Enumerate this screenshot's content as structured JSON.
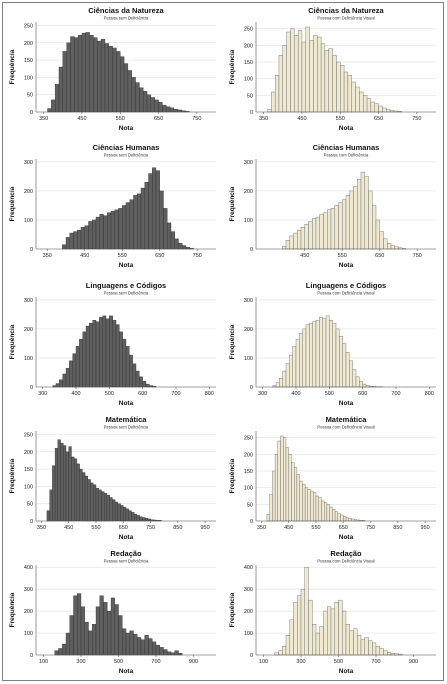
{
  "colors": {
    "dark_bar": "#5f5f5f",
    "dark_stroke": "#2b2b2b",
    "light_bar": "#efe9d2",
    "light_stroke": "#555555"
  },
  "chart_data": [
    {
      "type": "bar",
      "title": "Ciências da Natureza",
      "subtitle": "Pessoa sem Deficiência",
      "xlabel": "Nota",
      "ylabel": "Frequência",
      "xlim": [
        330,
        800
      ],
      "ylim": [
        0,
        260
      ],
      "xticks": [
        "350",
        "450",
        "550",
        "650",
        "750"
      ],
      "yticks": [
        "0",
        "50",
        "100",
        "150",
        "200",
        "250"
      ],
      "bin_start": 360,
      "bin_width": 10,
      "values": [
        10,
        35,
        80,
        130,
        175,
        200,
        218,
        215,
        222,
        228,
        230,
        222,
        215,
        205,
        210,
        198,
        190,
        185,
        175,
        160,
        140,
        120,
        100,
        85,
        70,
        60,
        50,
        42,
        35,
        28,
        20,
        15,
        12,
        8,
        6,
        4,
        2
      ]
    },
    {
      "type": "bar",
      "title": "Ciências da Natureza",
      "subtitle": "Pessoa com Deficiência Visual",
      "xlabel": "Nota",
      "ylabel": "Frequência",
      "xlim": [
        330,
        800
      ],
      "ylim": [
        0,
        270
      ],
      "xticks": [
        "350",
        "450",
        "550",
        "650",
        "750"
      ],
      "yticks": [
        "0",
        "50",
        "100",
        "150",
        "200",
        "250"
      ],
      "bin_start": 360,
      "bin_width": 10,
      "values": [
        8,
        60,
        110,
        170,
        200,
        240,
        250,
        230,
        245,
        210,
        255,
        215,
        230,
        225,
        205,
        185,
        190,
        170,
        150,
        140,
        120,
        110,
        90,
        75,
        60,
        50,
        40,
        30,
        25,
        18,
        12,
        8,
        5,
        3,
        2
      ]
    },
    {
      "type": "bar",
      "title": "Ciências Humanas",
      "subtitle": "Pessoa sem Deficiência",
      "xlabel": "Nota",
      "ylabel": "Frequência",
      "xlim": [
        320,
        800
      ],
      "ylim": [
        0,
        310
      ],
      "xticks": [
        "350",
        "450",
        "550",
        "650",
        "750"
      ],
      "yticks": [
        "0",
        "100",
        "200",
        "300"
      ],
      "bin_start": 390,
      "bin_width": 10,
      "values": [
        15,
        40,
        55,
        60,
        65,
        75,
        80,
        95,
        100,
        110,
        120,
        115,
        125,
        130,
        135,
        140,
        150,
        160,
        170,
        185,
        190,
        210,
        230,
        260,
        280,
        270,
        200,
        140,
        90,
        60,
        35,
        20,
        12,
        6,
        3
      ]
    },
    {
      "type": "bar",
      "title": "Ciências Humanas",
      "subtitle": "Pessoa com Deficiência",
      "xlabel": "Nota",
      "ylabel": "Frequência",
      "xlim": [
        320,
        800
      ],
      "ylim": [
        0,
        310
      ],
      "xticks": [
        "450",
        "550",
        "650",
        "750"
      ],
      "yticks": [
        "0",
        "100",
        "200",
        "300"
      ],
      "bin_start": 390,
      "bin_width": 10,
      "values": [
        10,
        30,
        45,
        55,
        65,
        75,
        85,
        95,
        105,
        110,
        120,
        125,
        135,
        140,
        150,
        160,
        170,
        185,
        200,
        215,
        240,
        265,
        250,
        200,
        150,
        100,
        60,
        35,
        20,
        12,
        8,
        4,
        2
      ]
    },
    {
      "type": "bar",
      "title": "Linguagens e Códigos",
      "subtitle": "Pessoa sem Deficiência",
      "xlabel": "Nota",
      "ylabel": "Frequência",
      "xlim": [
        280,
        820
      ],
      "ylim": [
        0,
        310
      ],
      "xticks": [
        "300",
        "400",
        "500",
        "600",
        "700",
        "800"
      ],
      "yticks": [
        "0",
        "100",
        "200",
        "300"
      ],
      "bin_start": 330,
      "bin_width": 10,
      "values": [
        5,
        12,
        25,
        45,
        65,
        90,
        115,
        140,
        165,
        190,
        210,
        220,
        230,
        225,
        240,
        245,
        235,
        245,
        230,
        215,
        190,
        165,
        140,
        110,
        80,
        55,
        35,
        20,
        10,
        5,
        3
      ]
    },
    {
      "type": "bar",
      "title": "Linguagens e Códigos",
      "subtitle": "Pessoa com Deficiência Visual",
      "xlabel": "Nota",
      "ylabel": "Frequência",
      "xlim": [
        280,
        820
      ],
      "ylim": [
        0,
        310
      ],
      "xticks": [
        "300",
        "400",
        "500",
        "600",
        "700",
        "800"
      ],
      "yticks": [
        "0",
        "100",
        "200",
        "300"
      ],
      "bin_start": 330,
      "bin_width": 10,
      "values": [
        5,
        15,
        30,
        55,
        80,
        110,
        140,
        165,
        185,
        200,
        215,
        220,
        225,
        230,
        240,
        235,
        245,
        230,
        220,
        200,
        175,
        150,
        120,
        90,
        60,
        35,
        20,
        10,
        5,
        3,
        2,
        1,
        1
      ]
    },
    {
      "type": "bar",
      "title": "Matemática",
      "subtitle": "Pessoa sem Deficiência",
      "xlabel": "Nota",
      "ylabel": "Frequência",
      "xlim": [
        330,
        990
      ],
      "ylim": [
        0,
        260
      ],
      "xticks": [
        "350",
        "450",
        "550",
        "650",
        "750",
        "850",
        "950"
      ],
      "yticks": [
        "0",
        "50",
        "100",
        "150",
        "200",
        "250"
      ],
      "bin_start": 370,
      "bin_width": 10,
      "values": [
        30,
        90,
        160,
        210,
        235,
        225,
        218,
        200,
        215,
        185,
        180,
        165,
        150,
        140,
        130,
        120,
        110,
        105,
        95,
        90,
        85,
        80,
        75,
        68,
        62,
        55,
        50,
        45,
        40,
        35,
        30,
        25,
        20,
        16,
        12,
        10,
        8,
        6,
        4,
        3,
        2,
        2
      ]
    },
    {
      "type": "bar",
      "title": "Matemática",
      "subtitle": "Pessoa com Deficiência Visual",
      "xlabel": "Nota",
      "ylabel": "Frequência",
      "xlim": [
        330,
        990
      ],
      "ylim": [
        0,
        270
      ],
      "xticks": [
        "350",
        "450",
        "550",
        "650",
        "750",
        "850",
        "950"
      ],
      "yticks": [
        "0",
        "50",
        "100",
        "150",
        "200",
        "250"
      ],
      "bin_start": 370,
      "bin_width": 10,
      "values": [
        20,
        80,
        150,
        200,
        240,
        255,
        250,
        220,
        200,
        175,
        160,
        140,
        120,
        110,
        100,
        95,
        90,
        85,
        75,
        70,
        60,
        55,
        50,
        42,
        35,
        28,
        22,
        18,
        14,
        10,
        8,
        6,
        4,
        3,
        2,
        2
      ]
    },
    {
      "type": "bar",
      "title": "Redação",
      "subtitle": "Pessoa sem Deficiência",
      "xlabel": "Nota",
      "ylabel": "Frequência",
      "xlim": [
        60,
        1020
      ],
      "ylim": [
        0,
        410
      ],
      "xticks": [
        "100",
        "300",
        "500",
        "700",
        "900"
      ],
      "yticks": [
        "0",
        "100",
        "200",
        "300",
        "400"
      ],
      "bin_start": 160,
      "bin_width": 20,
      "values": [
        20,
        30,
        50,
        100,
        180,
        270,
        280,
        220,
        150,
        110,
        140,
        220,
        270,
        240,
        200,
        260,
        230,
        180,
        120,
        100,
        110,
        95,
        80,
        70,
        90,
        75,
        60,
        45,
        35,
        25,
        15,
        10,
        20,
        8
      ]
    },
    {
      "type": "bar",
      "title": "Redação",
      "subtitle": "Pessoa com Deficiência Visual",
      "xlabel": "Nota",
      "ylabel": "Frequência",
      "xlim": [
        60,
        1020
      ],
      "ylim": [
        0,
        410
      ],
      "xticks": [
        "100",
        "300",
        "500",
        "700",
        "900"
      ],
      "yticks": [
        "0",
        "100",
        "200",
        "300",
        "400"
      ],
      "bin_start": 160,
      "bin_width": 20,
      "values": [
        10,
        20,
        40,
        90,
        160,
        240,
        270,
        300,
        400,
        250,
        140,
        100,
        130,
        200,
        220,
        210,
        240,
        250,
        200,
        140,
        110,
        120,
        90,
        70,
        80,
        65,
        55,
        40,
        30,
        20,
        12,
        8,
        6,
        4
      ]
    }
  ]
}
